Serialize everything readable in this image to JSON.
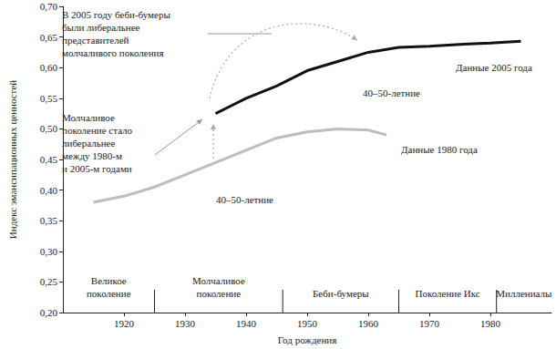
{
  "chart_data": {
    "type": "line",
    "x_label": "Год рождения",
    "y_label": "Индекс эмансипационных ценностей",
    "xlim": [
      1910,
      1990
    ],
    "xticks": [
      1920,
      1930,
      1940,
      1950,
      1960,
      1970,
      1980
    ],
    "ylim": [
      0.2,
      0.7
    ],
    "yticks": [
      {
        "value": 0.2,
        "label": "0,20"
      },
      {
        "value": 0.25,
        "label": "0,25"
      },
      {
        "value": 0.3,
        "label": "0,30"
      },
      {
        "value": 0.35,
        "label": "0,35"
      },
      {
        "value": 0.4,
        "label": "0,40"
      },
      {
        "value": 0.45,
        "label": "0,45"
      },
      {
        "value": 0.5,
        "label": "0,50"
      },
      {
        "value": 0.55,
        "label": "0,55"
      },
      {
        "value": 0.6,
        "label": "0,60"
      },
      {
        "value": 0.65,
        "label": "0,65"
      },
      {
        "value": 0.7,
        "label": "0,70"
      }
    ],
    "grid": false,
    "series": [
      {
        "name": "Данные 1980 года",
        "color": "#bdbdbd",
        "x": [
          1915,
          1920,
          1925,
          1930,
          1935,
          1940,
          1945,
          1950,
          1955,
          1960,
          1963
        ],
        "values": [
          0.38,
          0.39,
          0.405,
          0.425,
          0.445,
          0.465,
          0.485,
          0.495,
          0.5,
          0.498,
          0.49
        ]
      },
      {
        "name": "Данные 2005 года",
        "color": "#111111",
        "x": [
          1935,
          1940,
          1945,
          1950,
          1955,
          1960,
          1965,
          1970,
          1975,
          1980,
          1985
        ],
        "values": [
          0.525,
          0.55,
          0.57,
          0.595,
          0.61,
          0.625,
          0.633,
          0.635,
          0.638,
          0.64,
          0.643
        ]
      }
    ],
    "generations": {
      "labels": [
        "Великое\nпоколение",
        "Молчаливое\nпоколение",
        "Беби-бумеры",
        "Поколение Икс",
        "Миллениалы"
      ],
      "boundaries": [
        1925,
        1946,
        1965,
        1981
      ]
    },
    "annotations": [
      "В 2005 году беби-бумеры\nбыли либеральнее\nпредставителей\nмолчаливого поколения",
      "Молчаливое\nпоколение стало\nлиберальнее\nмежду 1980-м\nи 2005-м годами",
      "40–50-летние",
      "40–50-летние"
    ]
  }
}
